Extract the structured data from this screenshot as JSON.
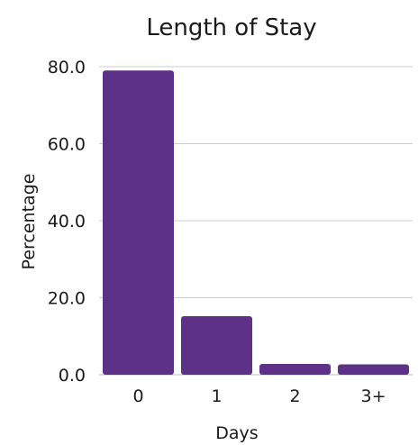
{
  "chart_data": {
    "type": "bar",
    "title": "Length of Stay",
    "xlabel": "Days",
    "ylabel": "Percentage",
    "categories": [
      "0",
      "1",
      "2",
      "3+"
    ],
    "values": [
      79.0,
      15.2,
      2.8,
      2.7
    ],
    "ylim": [
      0,
      80
    ],
    "yticks": [
      0,
      20,
      40,
      60,
      80
    ],
    "ytick_labels": [
      "0.0",
      "20.0",
      "40.0",
      "60.0",
      "80.0"
    ],
    "bar_color": "#5e3188",
    "grid": true,
    "legend": "none"
  }
}
